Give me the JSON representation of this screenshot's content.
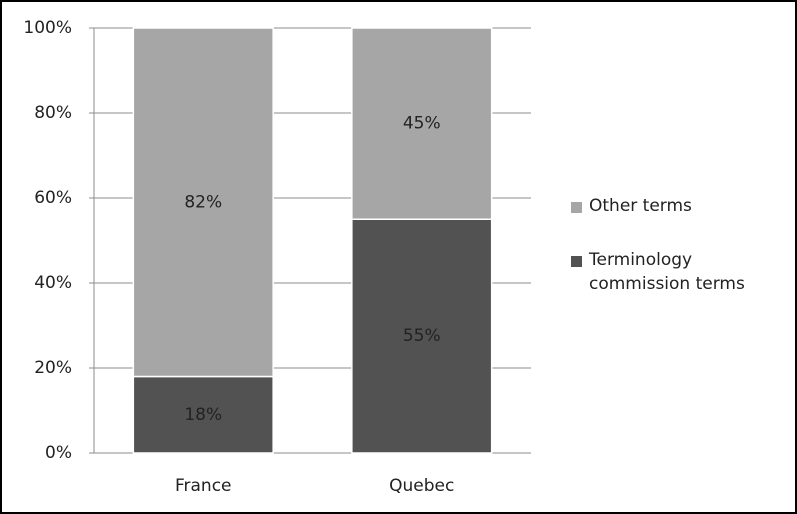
{
  "chart_data": {
    "type": "stacked_bar",
    "categories": [
      "France",
      "Quebec"
    ],
    "series": [
      {
        "name": "Terminology commission terms",
        "color": "#525252",
        "values": [
          18,
          55
        ],
        "value_labels": [
          "18%",
          "55%"
        ]
      },
      {
        "name": "Other terms",
        "color": "#a6a6a6",
        "values": [
          82,
          45
        ],
        "value_labels": [
          "82%",
          "45%"
        ]
      }
    ],
    "ylim": [
      0,
      100
    ],
    "yticks": [
      {
        "value": 0,
        "label": "0%"
      },
      {
        "value": 20,
        "label": "20%"
      },
      {
        "value": 40,
        "label": "40%"
      },
      {
        "value": 60,
        "label": "60%"
      },
      {
        "value": 80,
        "label": "80%"
      },
      {
        "value": 100,
        "label": "100%"
      }
    ],
    "grid": true,
    "legend": "right"
  }
}
